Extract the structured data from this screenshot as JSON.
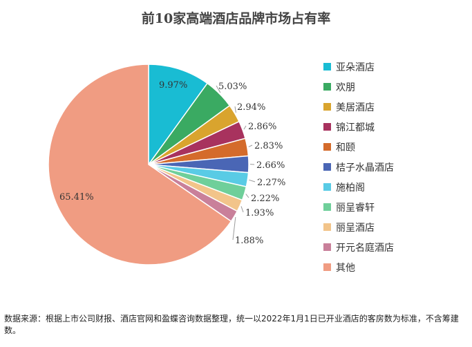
{
  "chart_data": {
    "type": "pie",
    "title": "前10家高端酒店品牌市场占有率",
    "categories": [
      "亚朵酒店",
      "欢朋",
      "美居酒店",
      "锦江都城",
      "和颐",
      "桔子水晶酒店",
      "施柏阁",
      "丽呈睿轩",
      "丽呈酒店",
      "开元名庭酒店",
      "其他"
    ],
    "values": [
      9.97,
      5.03,
      2.94,
      2.86,
      2.83,
      2.66,
      2.27,
      2.22,
      1.93,
      1.88,
      65.41
    ],
    "labels": [
      "9.97%",
      "5.03%",
      "2.94%",
      "2.86%",
      "2.83%",
      "2.66%",
      "2.27%",
      "2.22%",
      "1.93%",
      "1.88%",
      "65.41%"
    ],
    "colors": [
      "#19bcd3",
      "#3aaa62",
      "#d9a42e",
      "#a8325e",
      "#d46b2b",
      "#4a66b5",
      "#59cbe5",
      "#6fcf9a",
      "#f2c48a",
      "#c9809a",
      "#f09c82"
    ],
    "legend_position": "right"
  },
  "source_note": "数据来源：根据上市公司财报、酒店官网和盈蝶咨询数据整理，统一以2022年1月1日已开业酒店的客房数为标准，不含筹建数。"
}
